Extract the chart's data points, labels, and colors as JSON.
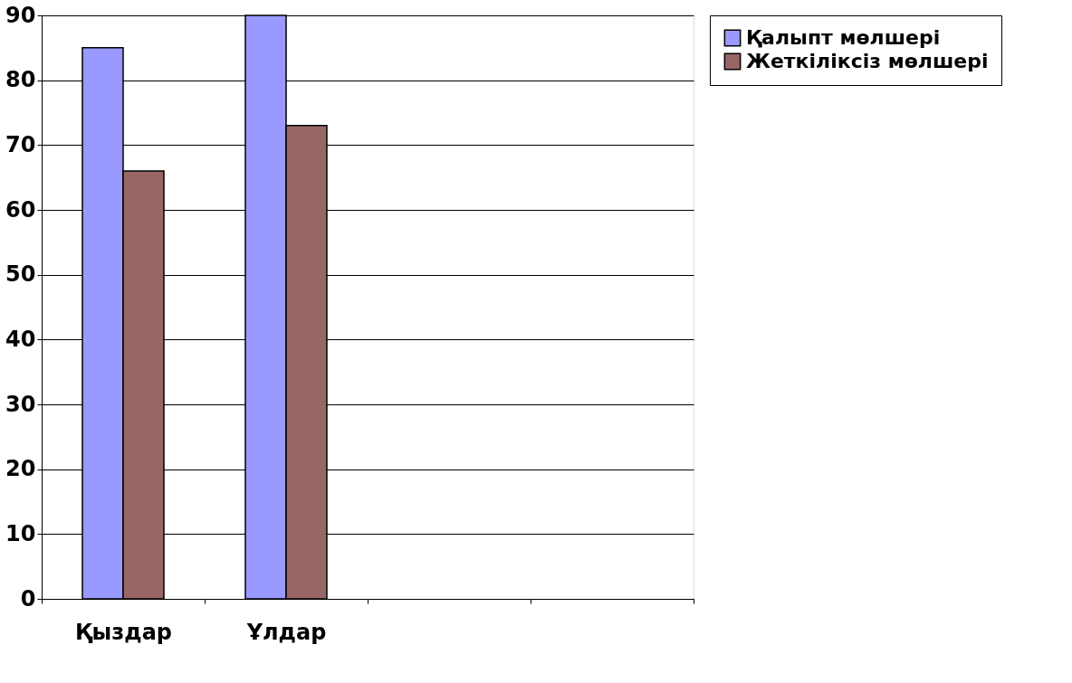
{
  "chart_data": {
    "type": "bar",
    "categories": [
      "Қыздар",
      "Ұлдар",
      null,
      null
    ],
    "series": [
      {
        "name": "Қалыпт мөлшері",
        "color": "#9999ff",
        "values": [
          85,
          90,
          null,
          null
        ]
      },
      {
        "name": "Жеткіліксіз мөлшері",
        "color": "#996666",
        "values": [
          66,
          73,
          null,
          null
        ]
      }
    ],
    "ylim": [
      0,
      90
    ],
    "yticks": [
      0,
      10,
      20,
      30,
      40,
      50,
      60,
      70,
      80,
      90
    ],
    "grid": "y",
    "legend": "right"
  }
}
